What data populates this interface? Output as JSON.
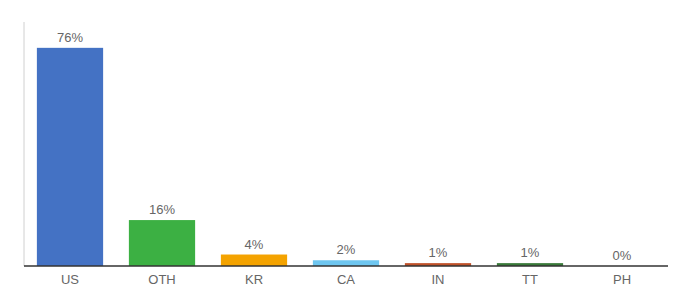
{
  "chart_data": {
    "type": "bar",
    "categories": [
      "US",
      "OTH",
      "KR",
      "CA",
      "IN",
      "TT",
      "PH"
    ],
    "values": [
      76,
      16,
      4,
      2,
      1,
      1,
      0
    ],
    "value_labels": [
      "76%",
      "16%",
      "4%",
      "2%",
      "1%",
      "1%",
      "0%"
    ],
    "colors": [
      "#4472C4",
      "#3CB043",
      "#F4A300",
      "#6EC6F0",
      "#C0522A",
      "#3A7A3A",
      "#B0B0B0"
    ],
    "ylim": [
      0,
      85
    ],
    "data_labels": true,
    "tick_labels": "x",
    "grid": false
  }
}
